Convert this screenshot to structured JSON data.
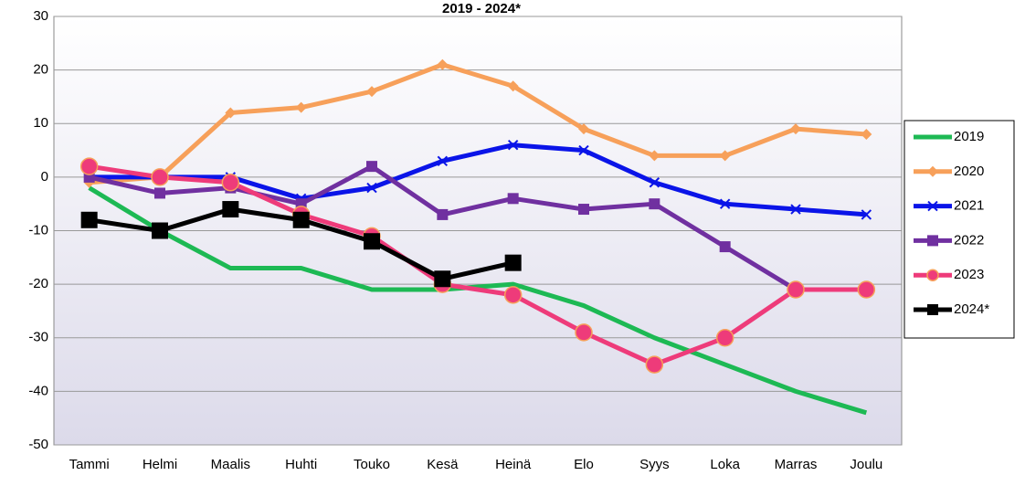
{
  "chart_data": {
    "type": "line",
    "title": "2019 - 2024*",
    "categories": [
      "Tammi",
      "Helmi",
      "Maalis",
      "Huhti",
      "Touko",
      "Kesä",
      "Heinä",
      "Elo",
      "Syys",
      "Loka",
      "Marras",
      "Joulu"
    ],
    "series": [
      {
        "name": "2019",
        "color": "#1db954",
        "marker": "none",
        "values": [
          -2,
          -10,
          -17,
          -17,
          -21,
          -21,
          -20,
          -24,
          -30,
          -35,
          -40,
          -44
        ]
      },
      {
        "name": "2020",
        "color": "#f7a05a",
        "marker": "diamond",
        "values": [
          -1,
          0,
          12,
          13,
          16,
          21,
          17,
          9,
          4,
          4,
          9,
          8
        ]
      },
      {
        "name": "2021",
        "color": "#0a14e8",
        "marker": "x",
        "values": [
          0,
          0,
          0,
          -4,
          -2,
          3,
          6,
          5,
          -1,
          -5,
          -6,
          -7
        ]
      },
      {
        "name": "2022",
        "color": "#7030a0",
        "marker": "square",
        "values": [
          0,
          -3,
          -2,
          -5,
          2,
          -7,
          -4,
          -6,
          -5,
          -13,
          -21,
          -21
        ]
      },
      {
        "name": "2023",
        "color": "#ee3b7a",
        "marker": "circle",
        "values": [
          2,
          0,
          -1,
          -7,
          -11,
          -20,
          -22,
          -29,
          -35,
          -30,
          -21,
          -21
        ]
      },
      {
        "name": "2024*",
        "color": "#000000",
        "marker": "square",
        "values": [
          -8,
          -10,
          -6,
          -8,
          -12,
          -19,
          -16,
          null,
          null,
          null,
          null,
          null
        ]
      }
    ],
    "ylim": [
      -50,
      30
    ],
    "yticks": [
      -50,
      -40,
      -30,
      -20,
      -10,
      0,
      10,
      20,
      30
    ],
    "grid": true,
    "legend": "right"
  }
}
